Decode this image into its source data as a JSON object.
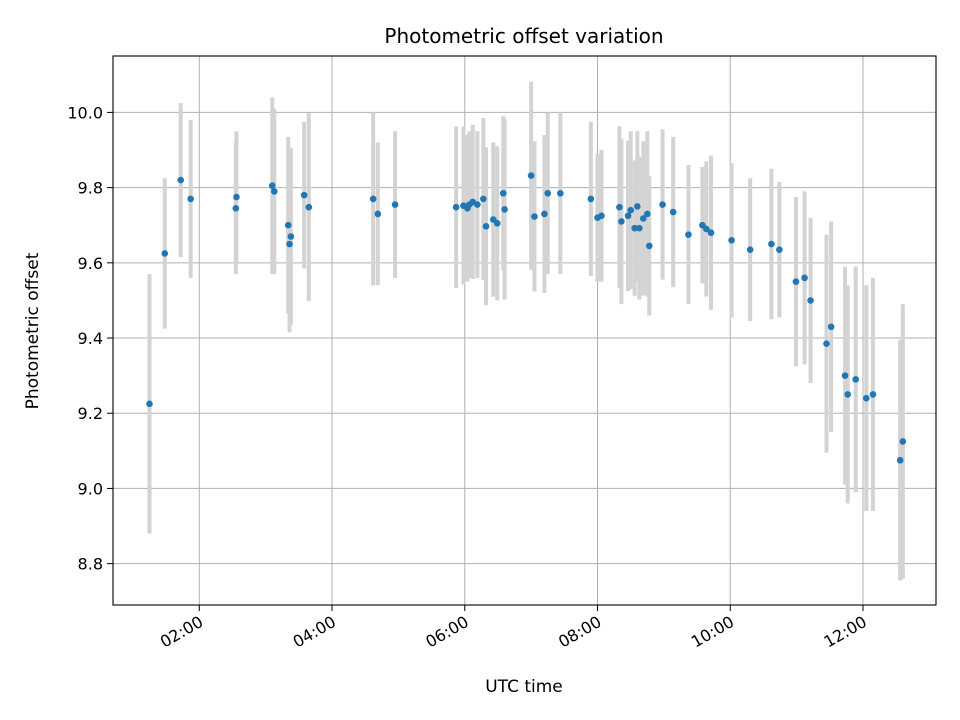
{
  "chart_data": {
    "type": "scatter",
    "title": "Photometric offset variation",
    "xlabel": "UTC time",
    "ylabel": "Photometric offset",
    "xlim": [
      0.7,
      13.1
    ],
    "ylim": [
      8.69,
      10.15
    ],
    "grid": true,
    "x_ticks": [
      {
        "value": 2,
        "label": "02:00"
      },
      {
        "value": 4,
        "label": "04:00"
      },
      {
        "value": 6,
        "label": "06:00"
      },
      {
        "value": 8,
        "label": "08:00"
      },
      {
        "value": 10,
        "label": "10:00"
      },
      {
        "value": 12,
        "label": "12:00"
      }
    ],
    "y_ticks": [
      {
        "value": 8.8,
        "label": "8.8"
      },
      {
        "value": 9.0,
        "label": "9.0"
      },
      {
        "value": 9.2,
        "label": "9.2"
      },
      {
        "value": 9.4,
        "label": "9.4"
      },
      {
        "value": 9.6,
        "label": "9.6"
      },
      {
        "value": 9.8,
        "label": "9.8"
      },
      {
        "value": 10.0,
        "label": "10.0"
      }
    ],
    "colors": {
      "point": "#1f77b4",
      "errorbar": "#d3d3d3",
      "grid": "#b0b0b0",
      "axis": "#000000"
    },
    "series": [
      {
        "name": "offset",
        "x": [
          1.25,
          1.48,
          1.72,
          1.87,
          2.55,
          2.56,
          3.1,
          3.13,
          3.34,
          3.36,
          3.38,
          3.58,
          3.65,
          4.62,
          4.69,
          4.95,
          5.87,
          5.98,
          6.04,
          6.07,
          6.12,
          6.19,
          6.28,
          6.32,
          6.43,
          6.49,
          6.58,
          6.6,
          7.0,
          7.05,
          7.2,
          7.25,
          7.44,
          7.9,
          8.0,
          8.06,
          8.33,
          8.36,
          8.46,
          8.5,
          8.56,
          8.6,
          8.63,
          8.69,
          8.75,
          8.78,
          8.98,
          9.14,
          9.37,
          9.58,
          9.64,
          9.71,
          10.02,
          10.3,
          10.62,
          10.74,
          10.99,
          11.12,
          11.21,
          11.45,
          11.52,
          11.73,
          11.77,
          11.89,
          12.05,
          12.15,
          12.56,
          12.6
        ],
        "y": [
          9.225,
          9.625,
          9.82,
          9.77,
          9.745,
          9.775,
          9.805,
          9.79,
          9.7,
          9.65,
          9.67,
          9.78,
          9.748,
          9.77,
          9.73,
          9.755,
          9.748,
          9.752,
          9.745,
          9.755,
          9.762,
          9.755,
          9.77,
          9.697,
          9.715,
          9.705,
          9.785,
          9.742,
          9.832,
          9.723,
          9.73,
          9.785,
          9.785,
          9.77,
          9.72,
          9.725,
          9.748,
          9.71,
          9.725,
          9.74,
          9.692,
          9.75,
          9.692,
          9.718,
          9.73,
          9.645,
          9.755,
          9.735,
          9.675,
          9.7,
          9.69,
          9.68,
          9.66,
          9.635,
          9.65,
          9.635,
          9.55,
          9.56,
          9.5,
          9.385,
          9.43,
          9.3,
          9.25,
          9.29,
          9.24,
          9.25,
          9.075,
          9.125
        ],
        "err": [
          0.345,
          0.2,
          0.205,
          0.21,
          0.175,
          0.175,
          0.235,
          0.22,
          0.235,
          0.235,
          0.235,
          0.195,
          0.25,
          0.23,
          0.19,
          0.195,
          0.215,
          0.21,
          0.195,
          0.195,
          0.205,
          0.195,
          0.215,
          0.21,
          0.205,
          0.205,
          0.205,
          0.24,
          0.25,
          0.2,
          0.21,
          0.215,
          0.215,
          0.205,
          0.17,
          0.175,
          0.215,
          0.22,
          0.2,
          0.21,
          0.18,
          0.2,
          0.19,
          0.205,
          0.22,
          0.185,
          0.2,
          0.2,
          0.185,
          0.155,
          0.18,
          0.205,
          0.205,
          0.19,
          0.2,
          0.18,
          0.225,
          0.23,
          0.22,
          0.29,
          0.28,
          0.29,
          0.29,
          0.3,
          0.3,
          0.31,
          0.32,
          0.365
        ]
      }
    ]
  }
}
